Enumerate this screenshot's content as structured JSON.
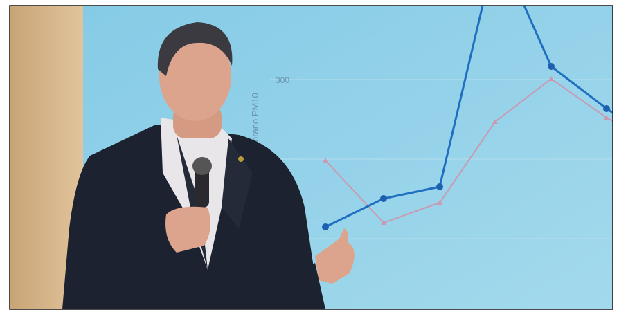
{
  "screen": {
    "tick_label": "300",
    "axis_label": "orano PM10"
  }
}
